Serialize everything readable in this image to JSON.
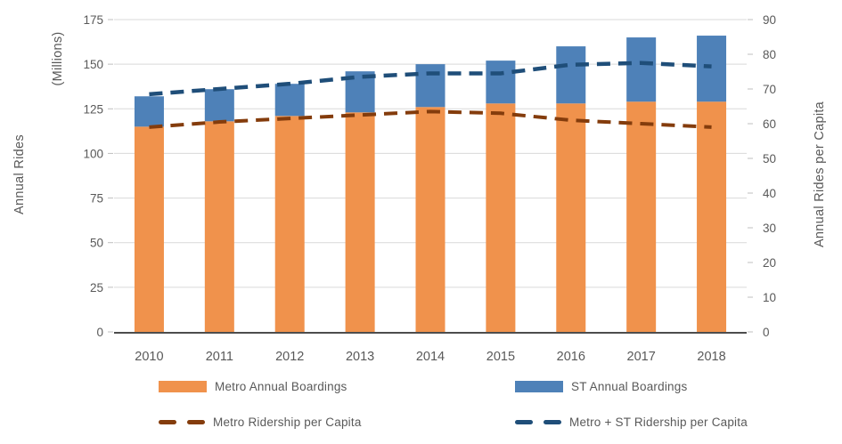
{
  "chart_data": {
    "type": "bar",
    "subtype": "stacked-bars-with-dashed-lines",
    "categories": [
      "2010",
      "2011",
      "2012",
      "2013",
      "2014",
      "2015",
      "2016",
      "2017",
      "2018"
    ],
    "series": [
      {
        "name": "Metro Annual Boardings",
        "type": "bar",
        "axis": "left",
        "color": "#F0924C",
        "values": [
          115,
          118,
          121,
          123,
          126,
          128,
          128,
          129,
          129
        ]
      },
      {
        "name": "ST Annual Boardings",
        "type": "bar",
        "axis": "left",
        "color": "#4E81B8",
        "values": [
          17,
          18,
          18,
          23,
          24,
          24,
          32,
          36,
          37
        ]
      },
      {
        "name": "Metro Ridership per Capita",
        "type": "dashed-line",
        "axis": "right",
        "color": "#843C0C",
        "values": [
          59,
          60.5,
          61.5,
          62.5,
          63.5,
          63,
          61,
          60,
          59
        ]
      },
      {
        "name": "Metro + ST Ridership per Capita",
        "type": "dashed-line",
        "axis": "right",
        "color": "#1F4E79",
        "values": [
          68.5,
          70,
          71.5,
          73.5,
          74.5,
          74.5,
          77,
          77.5,
          76.5
        ]
      }
    ],
    "left_axis": {
      "title": "Annual Rides",
      "subtitle": "(Millions)",
      "min": 0,
      "max": 175,
      "ticks": [
        0,
        25,
        50,
        75,
        100,
        125,
        150,
        175
      ]
    },
    "right_axis": {
      "title": "Annual Rides per Capita",
      "min": 0,
      "max": 90,
      "ticks": [
        0,
        10,
        20,
        30,
        40,
        50,
        60,
        70,
        80,
        90
      ]
    },
    "grid": true,
    "legend_position": "bottom"
  },
  "colors": {
    "metro_bar": "#F0924C",
    "st_bar": "#4E81B8",
    "metro_line": "#843C0C",
    "combined_line": "#1F4E79",
    "gridline": "#D9D9D9",
    "tick_stub": "#BFBFBF",
    "axis_line": "#4D4D4D",
    "text": "#595959"
  }
}
